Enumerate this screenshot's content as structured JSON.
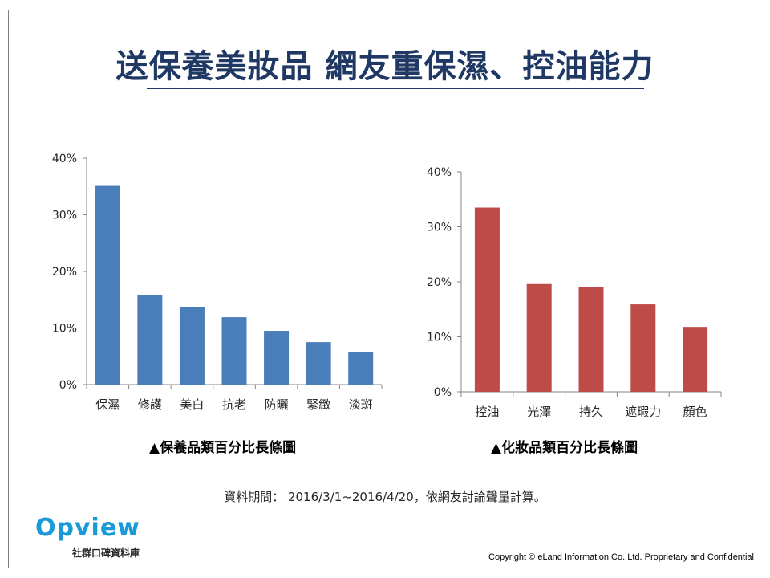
{
  "title": "送保養美妝品  網友重保濕、控油能力",
  "chart_data": [
    {
      "type": "bar",
      "caption": "▲保養品類百分比長條圖",
      "categories": [
        "保濕",
        "修護",
        "美白",
        "抗老",
        "防曬",
        "緊緻",
        "淡斑"
      ],
      "values": [
        35.1,
        15.8,
        13.7,
        11.9,
        9.5,
        7.5,
        5.7
      ],
      "ylim": [
        0,
        40
      ],
      "yticks": [
        "0%",
        "10%",
        "20%",
        "30%",
        "40%"
      ],
      "bar_color": "#4a7ebb",
      "grid": false
    },
    {
      "type": "bar",
      "caption": "▲化妝品類百分比長條圖",
      "categories": [
        "控油",
        "光澤",
        "持久",
        "遮瑕力",
        "顏色"
      ],
      "values": [
        33.5,
        19.6,
        19.0,
        15.9,
        11.8
      ],
      "ylim": [
        0,
        40
      ],
      "yticks": [
        "0%",
        "10%",
        "20%",
        "30%",
        "40%"
      ],
      "bar_color": "#be4b48",
      "grid": false
    }
  ],
  "period": "資料期間： 2016/3/1~2016/4/20，依網友討論聲量計算。",
  "logo": {
    "word": "Opview",
    "subtitle": "社群口碑資料庫"
  },
  "copyright": "Copyright © eLand Information Co. Ltd. Proprietary and Confidential"
}
